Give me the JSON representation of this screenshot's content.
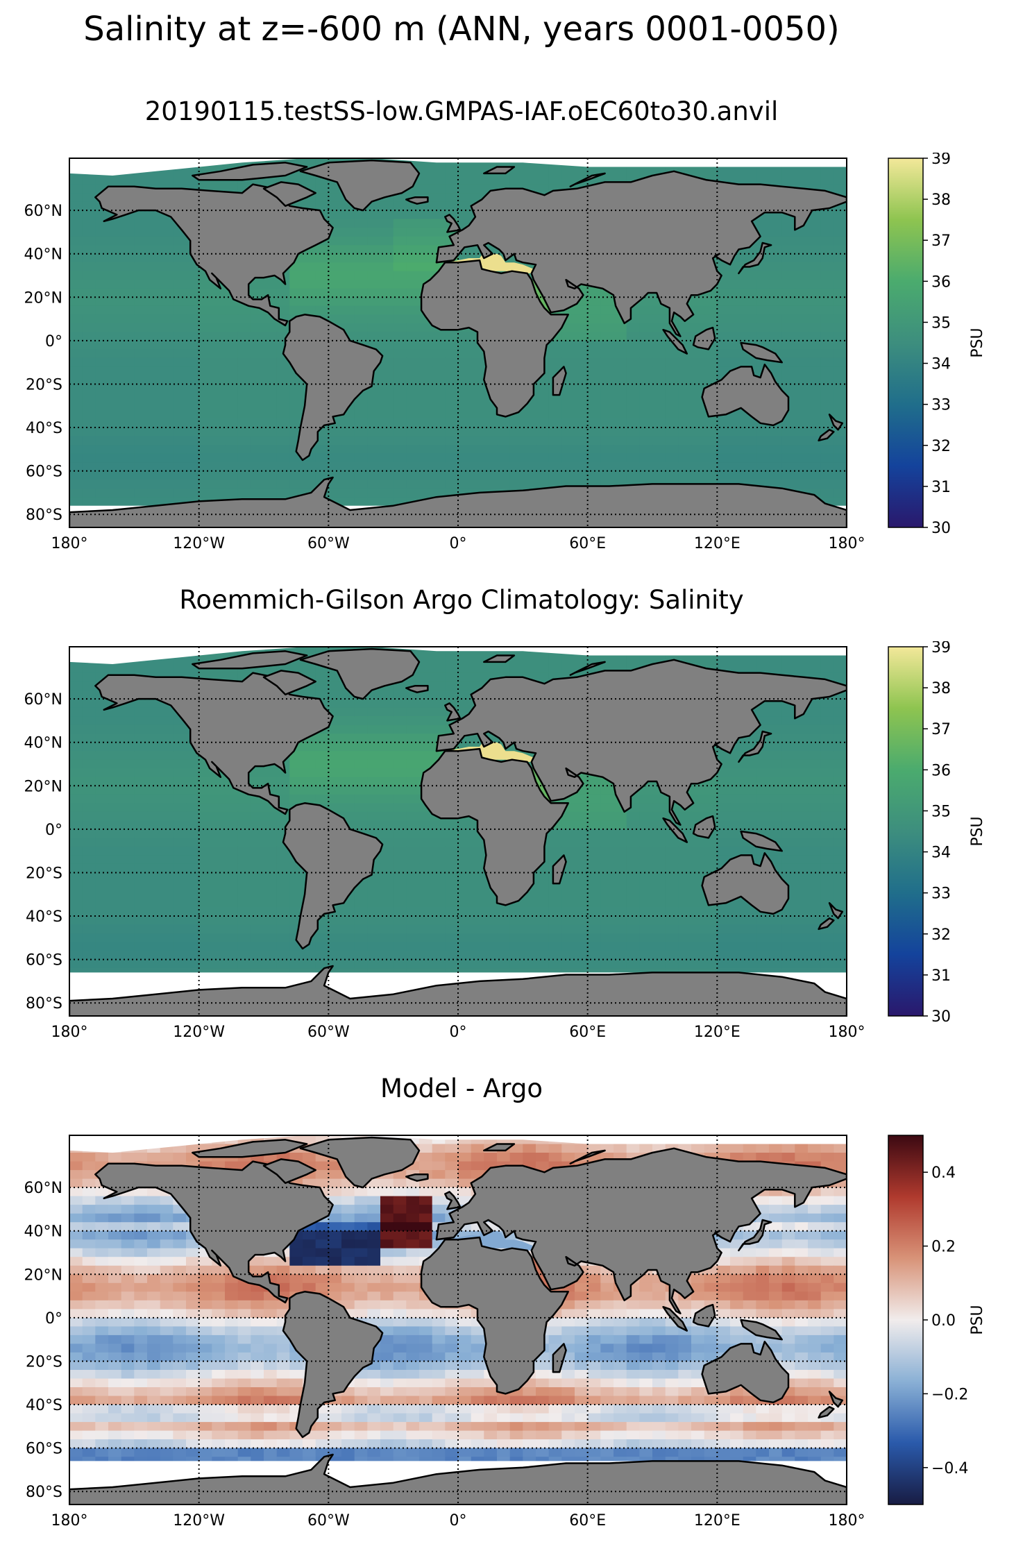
{
  "title": "Salinity at z=-600 m (ANN, years 0001-0050)",
  "colors": {
    "land": "#808080",
    "coast": "#000000",
    "gridline": "#000000",
    "ice": "#ffffff",
    "haline_stops": [
      "#2a186c",
      "#14439c",
      "#206e8b",
      "#3d8e7e",
      "#4bab6e",
      "#8ec450",
      "#f3e89a"
    ],
    "balance_stops": [
      "#181c43",
      "#2a5aab",
      "#8ab0d5",
      "#f1ecec",
      "#d89378",
      "#b03a2e",
      "#3c0912"
    ]
  },
  "lon_ticks": [
    "180°",
    "120°W",
    "60°W",
    "0°",
    "60°E",
    "120°E",
    "180°"
  ],
  "lat_ticks": [
    "60°N",
    "40°N",
    "20°N",
    "0°",
    "20°S",
    "40°S",
    "60°S",
    "80°S"
  ],
  "panels": [
    {
      "title": "20190115.testSS-low.GMPAS-IAF.oEC60to30.anvil",
      "field": "model",
      "colorbar": {
        "label": "PSU",
        "ticks": [
          "39",
          "38",
          "37",
          "36",
          "35",
          "34",
          "33",
          "32",
          "31",
          "30"
        ]
      }
    },
    {
      "title": "Roemmich-Gilson Argo Climatology: Salinity",
      "field": "obs",
      "colorbar": {
        "label": "PSU",
        "ticks": [
          "39",
          "38",
          "37",
          "36",
          "35",
          "34",
          "33",
          "32",
          "31",
          "30"
        ]
      }
    },
    {
      "title": "Model - Argo",
      "field": "diff",
      "colorbar": {
        "label": "PSU",
        "ticks": [
          "0.4",
          "0.2",
          "0.0",
          "−0.2",
          "−0.4"
        ]
      }
    }
  ]
}
